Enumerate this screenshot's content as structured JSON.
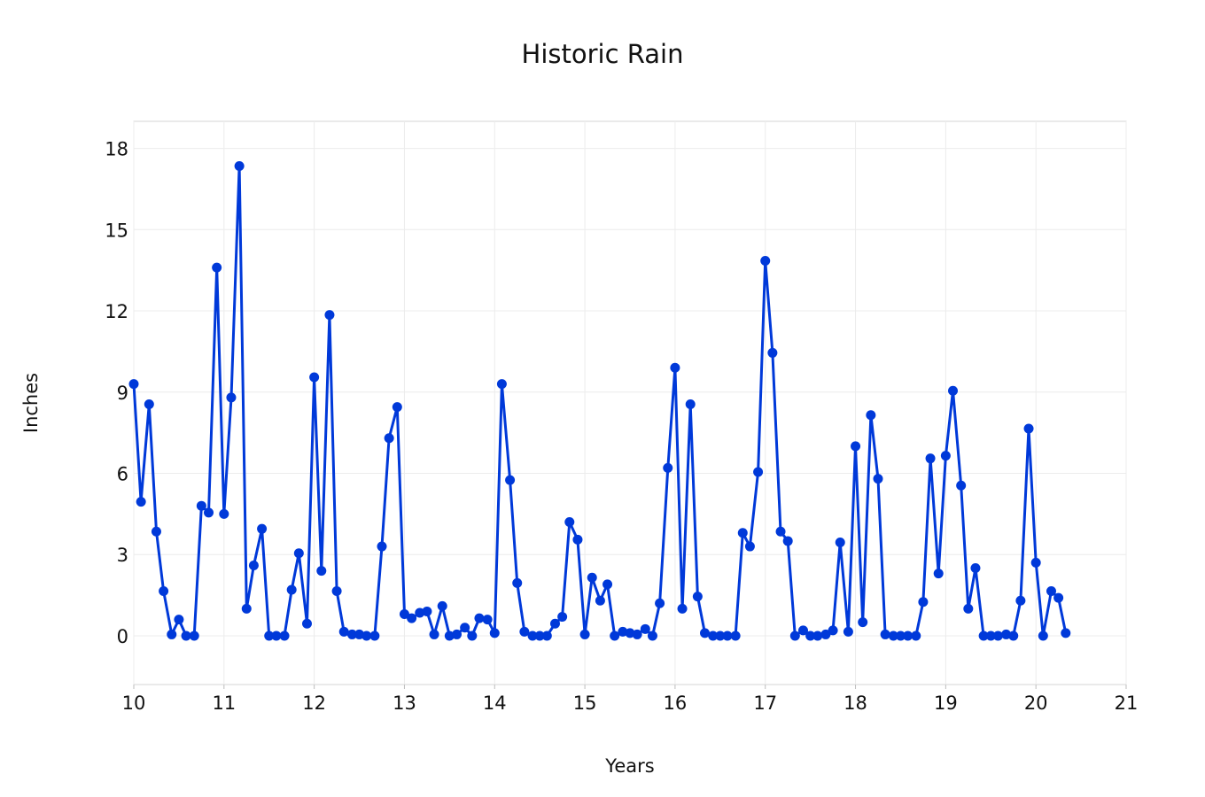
{
  "chart_data": {
    "type": "line",
    "title": "Historic Rain",
    "xlabel": "Years",
    "ylabel": "Inches",
    "xlim": [
      10,
      21
    ],
    "ylim": [
      -1.8,
      19
    ],
    "x_ticks": [
      10,
      11,
      12,
      13,
      14,
      15,
      16,
      17,
      18,
      19,
      20,
      21
    ],
    "y_ticks": [
      0,
      3,
      6,
      9,
      12,
      15,
      18
    ],
    "grid": true,
    "legend": "none",
    "line_color": "#0039d9",
    "series": [
      {
        "x": [
          10.0,
          10.08,
          10.17,
          10.25,
          10.33,
          10.42,
          10.5,
          10.58,
          10.67,
          10.75,
          10.83,
          10.92,
          11.0,
          11.08,
          11.17,
          11.25,
          11.33,
          11.42,
          11.5,
          11.58,
          11.67,
          11.75,
          11.83,
          11.92,
          12.0,
          12.08,
          12.17,
          12.25,
          12.33,
          12.42,
          12.5,
          12.58,
          12.67,
          12.75,
          12.83,
          12.92,
          13.0,
          13.08,
          13.17,
          13.25,
          13.33,
          13.42,
          13.5,
          13.58,
          13.67,
          13.75,
          13.83,
          13.92,
          14.0,
          14.08,
          14.17,
          14.25,
          14.33,
          14.42,
          14.5,
          14.58,
          14.67,
          14.75,
          14.83,
          14.92,
          15.0,
          15.08,
          15.17,
          15.25,
          15.33,
          15.42,
          15.5,
          15.58,
          15.67,
          15.75,
          15.83,
          15.92,
          16.0,
          16.08,
          16.17,
          16.25,
          16.33,
          16.42,
          16.5,
          16.58,
          16.67,
          16.75,
          16.83,
          16.92,
          17.0,
          17.08,
          17.17,
          17.25,
          17.33,
          17.42,
          17.5,
          17.58,
          17.67,
          17.75,
          17.83,
          17.92,
          18.0,
          18.08,
          18.17,
          18.25,
          18.33,
          18.42,
          18.5,
          18.58,
          18.67,
          18.75,
          18.83,
          18.92,
          19.0,
          19.08,
          19.17,
          19.25,
          19.33,
          19.42,
          19.5,
          19.58,
          19.67,
          19.75,
          19.83,
          19.92,
          20.0,
          20.08,
          20.17,
          20.25,
          20.33
        ],
        "y": [
          9.3,
          4.95,
          8.55,
          3.85,
          1.65,
          0.05,
          0.6,
          0.0,
          0.0,
          4.8,
          4.55,
          13.6,
          4.5,
          8.8,
          17.35,
          1.0,
          2.6,
          3.95,
          0.0,
          0.0,
          0.0,
          1.7,
          3.05,
          0.45,
          9.55,
          2.4,
          11.85,
          1.65,
          0.15,
          0.05,
          0.05,
          0.0,
          0.0,
          3.3,
          7.3,
          8.45,
          0.8,
          0.65,
          0.85,
          0.9,
          0.05,
          1.1,
          0.0,
          0.05,
          0.3,
          0.0,
          0.65,
          0.6,
          0.1,
          9.3,
          5.75,
          1.95,
          0.15,
          0.0,
          0.0,
          0.0,
          0.45,
          0.7,
          4.2,
          3.55,
          0.05,
          2.15,
          1.3,
          1.9,
          0.0,
          0.15,
          0.1,
          0.05,
          0.25,
          0.0,
          1.2,
          6.2,
          9.9,
          1.0,
          8.55,
          1.45,
          0.1,
          0.0,
          0.0,
          0.0,
          0.0,
          3.8,
          3.3,
          6.05,
          13.85,
          10.45,
          3.85,
          3.5,
          0.0,
          0.2,
          0.0,
          0.0,
          0.05,
          0.2,
          3.45,
          0.15,
          7.0,
          0.5,
          8.15,
          5.8,
          0.05,
          0.0,
          0.0,
          0.0,
          0.0,
          1.25,
          6.55,
          2.3,
          6.65,
          9.05,
          5.55,
          1.0,
          2.5,
          0.0,
          0.0,
          0.0,
          0.05,
          0.0,
          1.3,
          7.65,
          2.7,
          0.0,
          1.65,
          1.4,
          0.1
        ]
      }
    ]
  }
}
